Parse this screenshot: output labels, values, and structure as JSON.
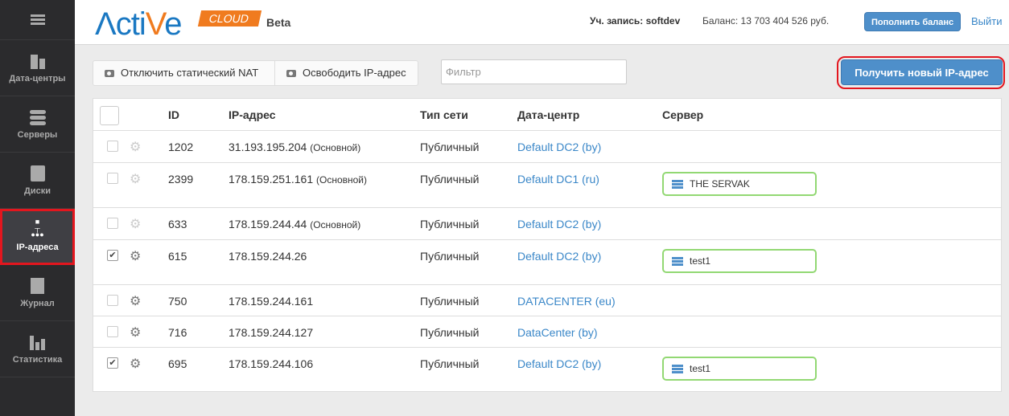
{
  "sidebar": {
    "items": [
      {
        "label": "Дата-центры",
        "icon": "building-icon"
      },
      {
        "label": "Серверы",
        "icon": "server-icon"
      },
      {
        "label": "Диски",
        "icon": "disk-icon"
      },
      {
        "label": "IP-адреса",
        "icon": "network-icon",
        "active": true
      },
      {
        "label": "Журнал",
        "icon": "notepad-icon"
      },
      {
        "label": "Статистика",
        "icon": "bar-chart-icon"
      }
    ]
  },
  "header": {
    "logo": "Active",
    "logo_badge": "CLOUD",
    "beta": "Beta",
    "account": "Уч. запись: softdev",
    "balance": "Баланс: 13 703 404 526 руб.",
    "topup": "Пополнить баланс",
    "logout": "Выйти"
  },
  "toolbar": {
    "disable_nat": "Отключить статический NAT",
    "release_ip": "Освободить IP-адрес",
    "filter_placeholder": "Фильтр",
    "new_ip": "Получить новый IP-адрес"
  },
  "table": {
    "headers": {
      "id": "ID",
      "ip": "IP-адрес",
      "type": "Тип сети",
      "dc": "Дата-центр",
      "server": "Сервер"
    },
    "rows": [
      {
        "id": "1202",
        "ip": "31.193.195.204",
        "tag": "(Основной)",
        "type": "Публичный",
        "dc": "Default DC2 (by)",
        "server": "",
        "checked": false
      },
      {
        "id": "2399",
        "ip": "178.159.251.161",
        "tag": "(Основной)",
        "type": "Публичный",
        "dc": "Default DC1 (ru)",
        "server": "THE SERVAK",
        "checked": false
      },
      {
        "id": "633",
        "ip": "178.159.244.44",
        "tag": "(Основной)",
        "type": "Публичный",
        "dc": "Default DC2 (by)",
        "server": "",
        "checked": false
      },
      {
        "id": "615",
        "ip": "178.159.244.26",
        "tag": "",
        "type": "Публичный",
        "dc": "Default DC2 (by)",
        "server": "test1",
        "checked": true
      },
      {
        "id": "750",
        "ip": "178.159.244.161",
        "tag": "",
        "type": "Публичный",
        "dc": "DATACENTER (eu)",
        "server": "",
        "checked": false
      },
      {
        "id": "716",
        "ip": "178.159.244.127",
        "tag": "",
        "type": "Публичный",
        "dc": "DataCenter (by)",
        "server": "",
        "checked": false
      },
      {
        "id": "695",
        "ip": "178.159.244.106",
        "tag": "",
        "type": "Публичный",
        "dc": "Default DC2 (by)",
        "server": "test1",
        "checked": true
      }
    ]
  }
}
